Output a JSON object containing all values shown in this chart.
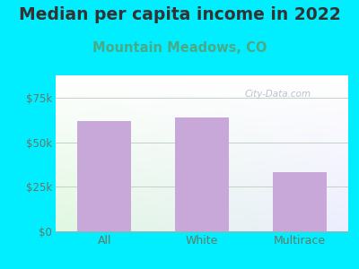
{
  "title": "Median per capita income in 2022",
  "subtitle": "Mountain Meadows, CO",
  "categories": [
    "All",
    "White",
    "Multirace"
  ],
  "values": [
    62000,
    64000,
    33000
  ],
  "bar_color": "#c8a8d8",
  "title_fontsize": 13.5,
  "subtitle_fontsize": 10.5,
  "subtitle_color": "#4aaa88",
  "title_color": "#333333",
  "tick_color": "#667766",
  "background_outer": "#00eeff",
  "ylim": [
    0,
    87500
  ],
  "yticks": [
    0,
    25000,
    50000,
    75000
  ],
  "ytick_labels": [
    "$0",
    "$25k",
    "$50k",
    "$75k"
  ],
  "watermark": "City-Data.com"
}
